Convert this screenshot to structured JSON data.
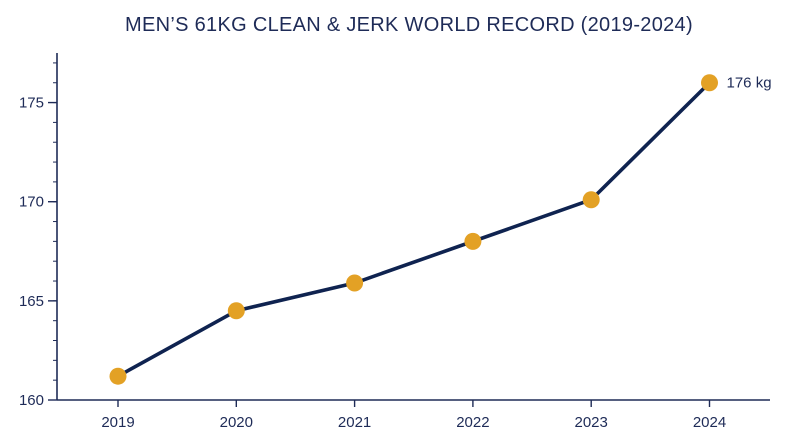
{
  "chart_data": {
    "type": "line",
    "title": "MEN’S 61KG CLEAN & JERK WORLD RECORD (2019-2024)",
    "xlabel": "",
    "ylabel": "",
    "x": [
      "2019",
      "2020",
      "2021",
      "2022",
      "2023",
      "2024"
    ],
    "series": [
      {
        "values": [
          161.2,
          164.5,
          165.9,
          168.0,
          170.1,
          176.0
        ]
      }
    ],
    "ylim": [
      160,
      177.5
    ],
    "yticks": [
      {
        "value": 160,
        "label": "160"
      },
      {
        "value": 165,
        "label": "165"
      },
      {
        "value": 170,
        "label": "170"
      },
      {
        "value": 175,
        "label": "175"
      }
    ],
    "minor_tick_step": 1,
    "annotations": [
      {
        "x": "2024",
        "value": 176,
        "text": "176 kg"
      }
    ],
    "grid": false,
    "legend": "none",
    "colors": {
      "line": "#0f2350",
      "marker": "#e3a125",
      "axis": "#1e2b57",
      "text": "#1e2b57"
    }
  }
}
